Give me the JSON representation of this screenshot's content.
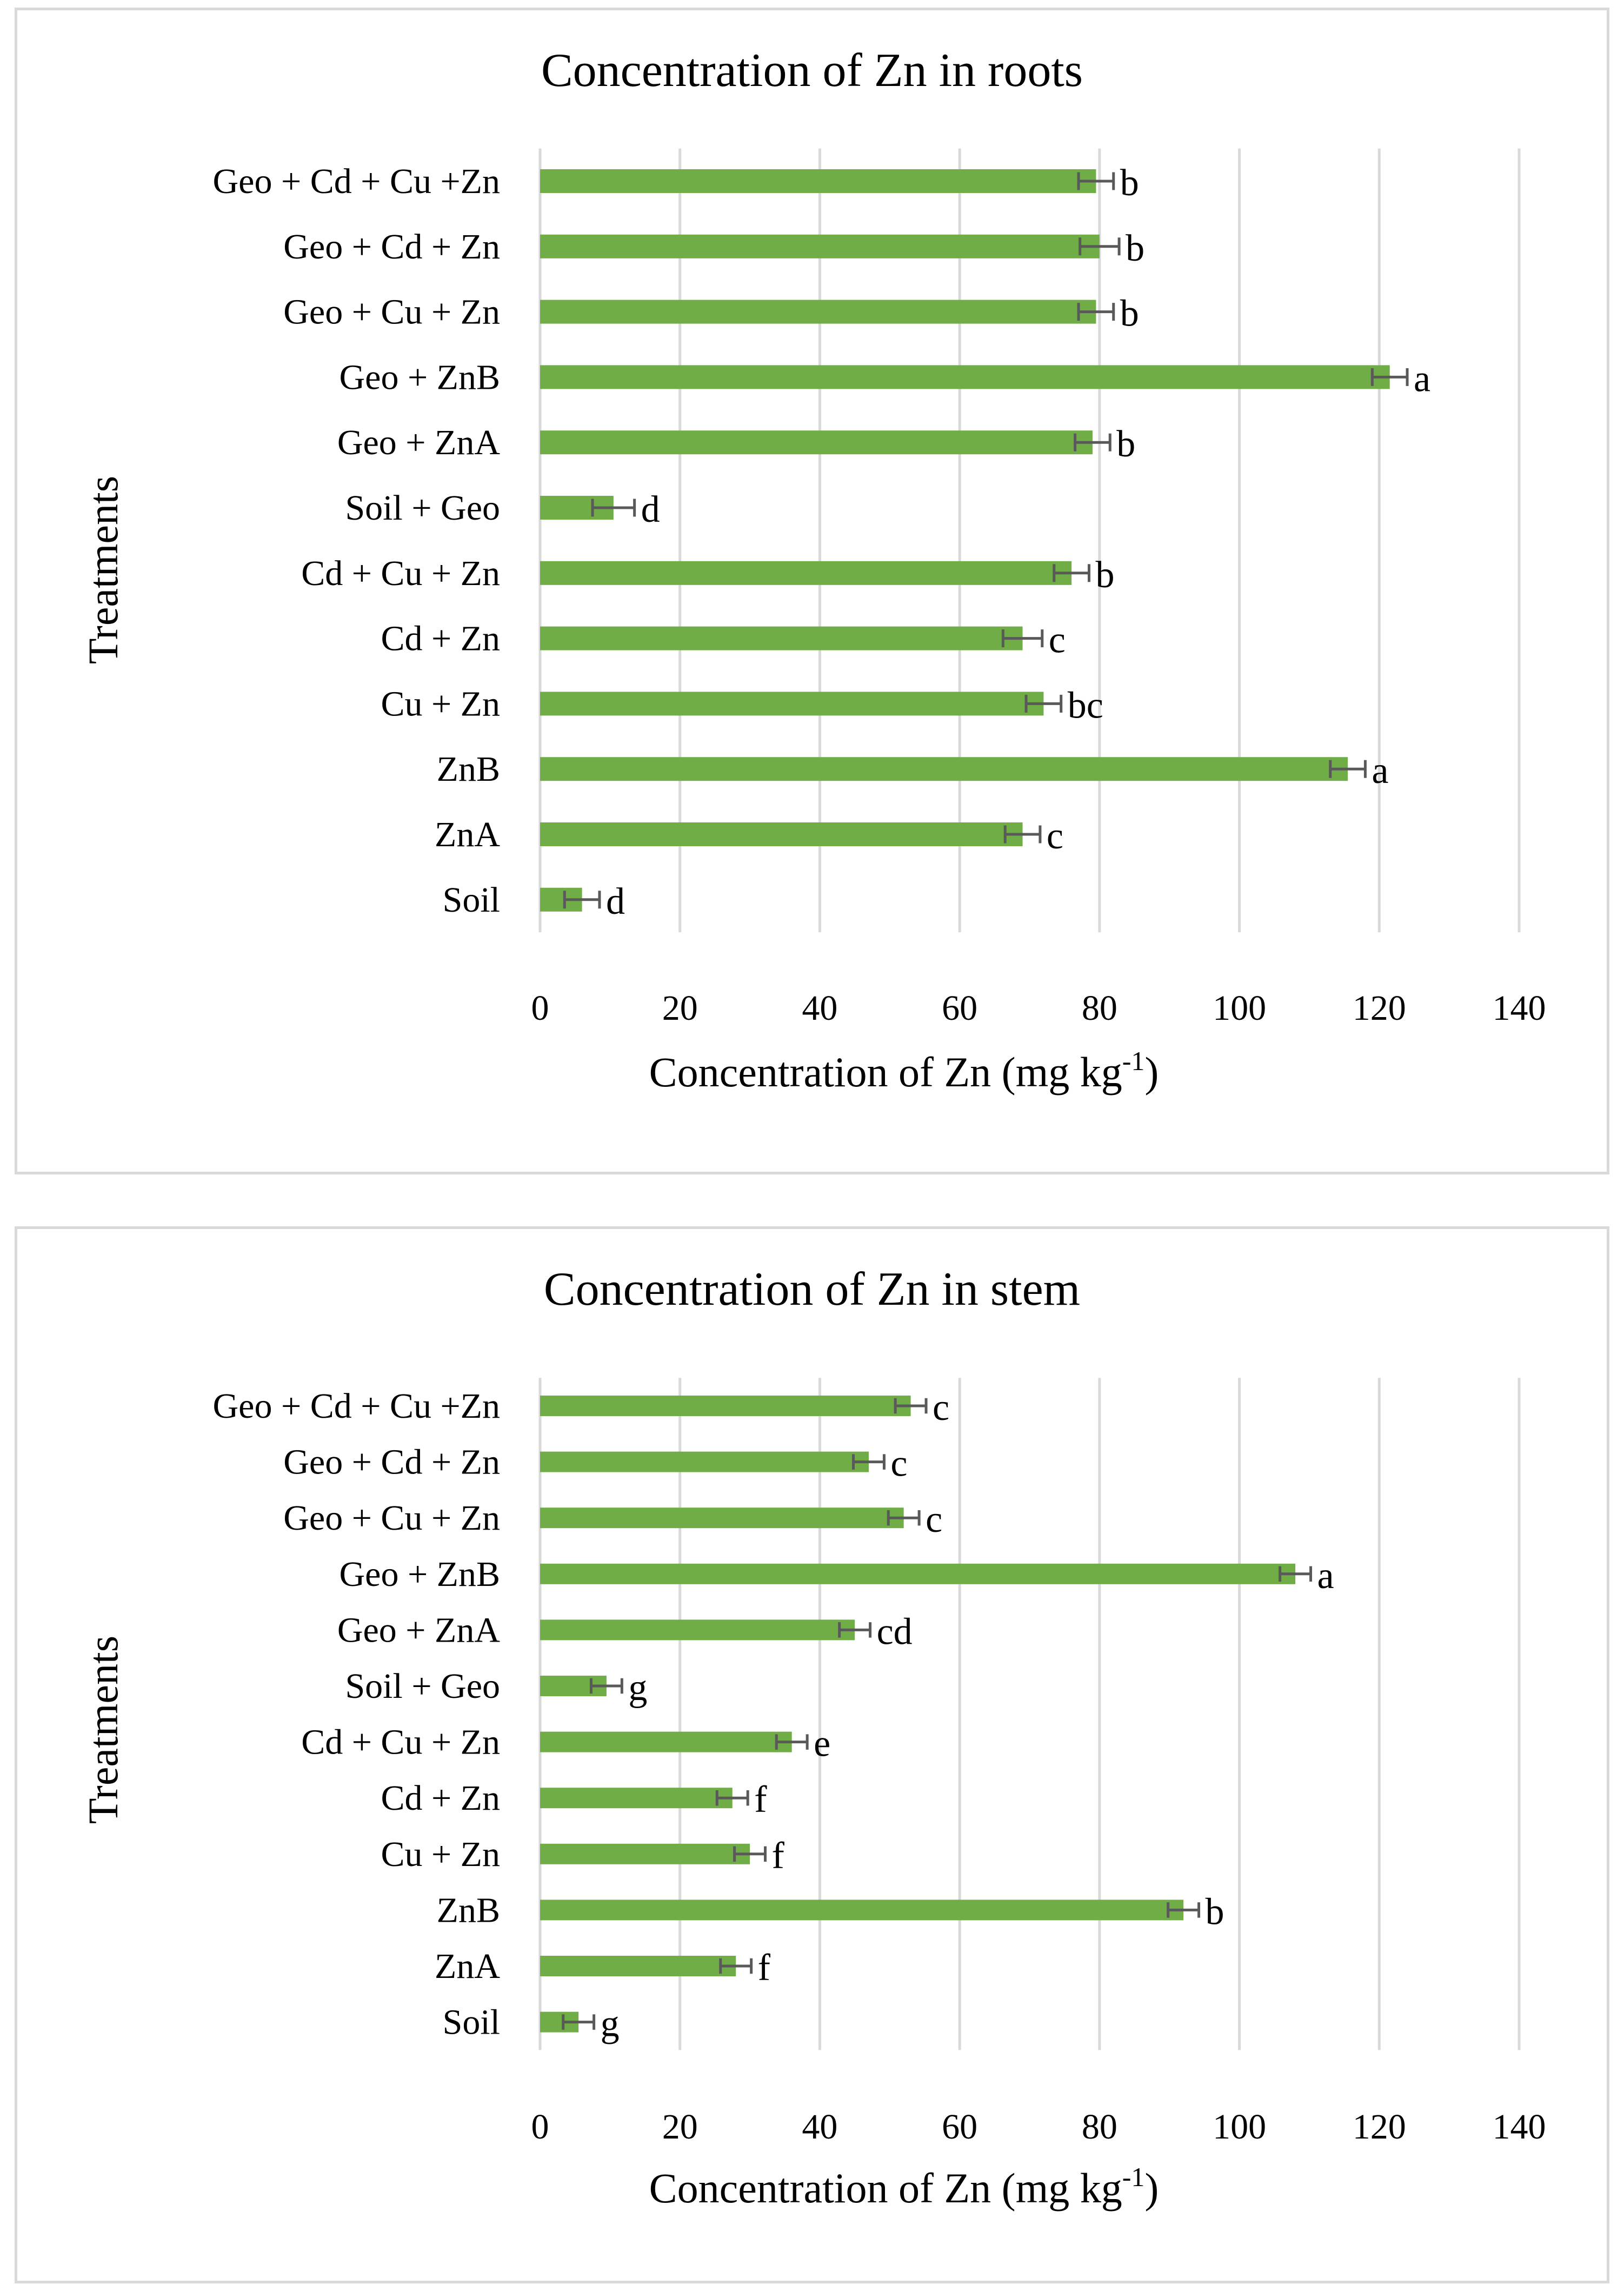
{
  "colors": {
    "bar": "#70ad47",
    "grid": "#d9d9d9",
    "error_bar": "#595959",
    "border": "#d9d9d9",
    "text": "#000000"
  },
  "chart_data": [
    {
      "type": "bar",
      "orientation": "horizontal",
      "title": "Concentration of Zn in roots",
      "xlabel": "Concentration of Zn  (mg kg",
      "xlabel_superscript": "-1",
      "xlabel_suffix": ")",
      "ylabel": "Treatments",
      "xlim": [
        0,
        140
      ],
      "xticks": [
        "0",
        "20",
        "40",
        "60",
        "80",
        "100",
        "120",
        "140"
      ],
      "grid": true,
      "categories": [
        "Geo +  Cd + Cu +Zn",
        "Geo + Cd + Zn",
        "Geo + Cu + Zn",
        "Geo + ZnB",
        "Geo + ZnA",
        "Soil + Geo",
        "Cd + Cu + Zn",
        "Cd + Zn",
        "Cu + Zn",
        "ZnB",
        "ZnA",
        "Soil"
      ],
      "values": [
        79.5,
        80,
        79.5,
        121.5,
        79,
        10.5,
        76,
        69,
        72,
        115.5,
        69,
        6
      ],
      "errors": [
        2.5,
        2.8,
        2.5,
        2.5,
        2.5,
        3,
        2.5,
        2.8,
        2.5,
        2.5,
        2.5,
        2.5
      ],
      "letters": [
        "b",
        "b",
        "b",
        "a",
        "b",
        "d",
        "b",
        "c",
        "bc",
        "a",
        "c",
        "d"
      ]
    },
    {
      "type": "bar",
      "orientation": "horizontal",
      "title": "Concentration of Zn in stem",
      "xlabel": "Concentration of Zn  (mg kg",
      "xlabel_superscript": "-1",
      "xlabel_suffix": ")",
      "ylabel": "Treatments",
      "xlim": [
        0,
        140
      ],
      "xticks": [
        "0",
        "20",
        "40",
        "60",
        "80",
        "100",
        "120",
        "140"
      ],
      "grid": true,
      "categories": [
        "Geo +  Cd + Cu +Zn",
        "Geo + Cd + Zn",
        "Geo + Cu + Zn",
        "Geo + ZnB",
        "Geo + ZnA",
        "Soil + Geo",
        "Cd + Cu + Zn",
        "Cd + Zn",
        "Cu + Zn",
        "ZnB",
        "ZnA",
        "Soil"
      ],
      "values": [
        53,
        47,
        52,
        108,
        45,
        9.5,
        36,
        27.5,
        30,
        92,
        28,
        5.5
      ],
      "errors": [
        2.2,
        2.2,
        2.2,
        2.2,
        2.2,
        2.2,
        2.2,
        2.2,
        2.2,
        2.2,
        2.2,
        2.2
      ],
      "letters": [
        "c",
        "c",
        "c",
        "a",
        "cd",
        "g",
        "e",
        "f",
        "f",
        "b",
        "f",
        "g"
      ]
    }
  ]
}
